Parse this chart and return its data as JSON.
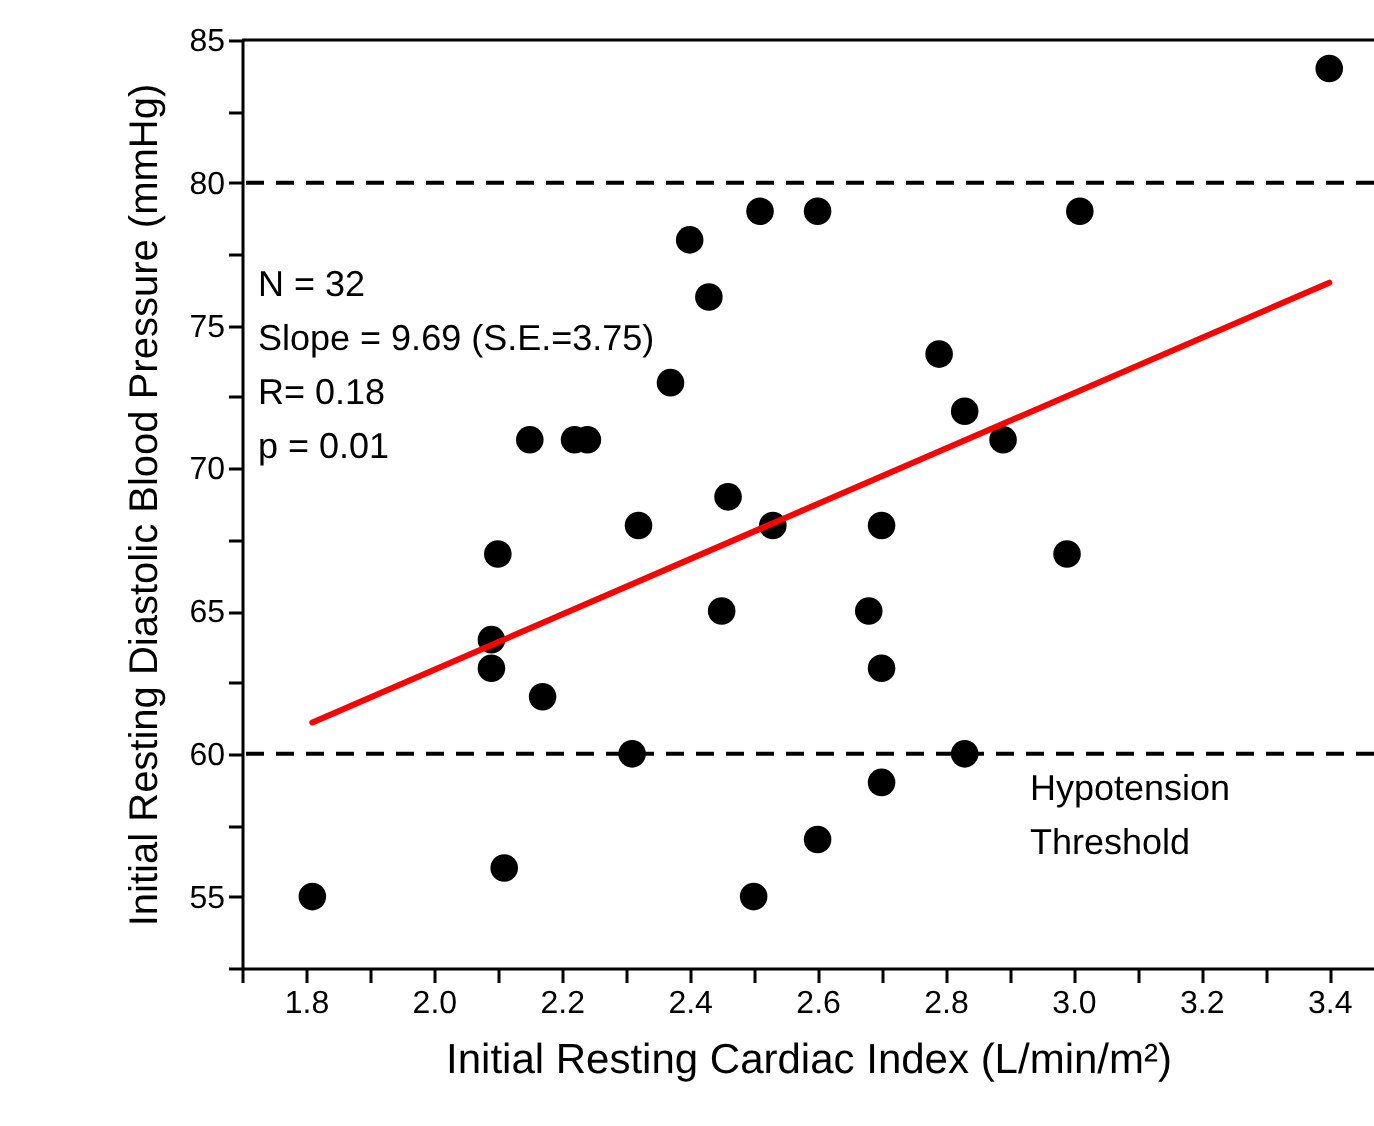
{
  "chart_data": {
    "type": "scatter",
    "xlabel": "Initial Resting Cardiac Index (L/min/m²)",
    "ylabel": "Initial Resting Diastolic Blood Pressure (mmHg)",
    "xlim": [
      1.7,
      3.47
    ],
    "ylim": [
      52.5,
      85
    ],
    "xticks": [
      {
        "value": 1.7,
        "label": null
      },
      1.8,
      {
        "value": 1.9,
        "label": null
      },
      {
        "value": 2.0,
        "label": "2.0"
      },
      {
        "value": 2.1,
        "label": null
      },
      2.2,
      {
        "value": 2.3,
        "label": null
      },
      2.4,
      {
        "value": 2.5,
        "label": null
      },
      2.6,
      {
        "value": 2.7,
        "label": null
      },
      2.8,
      {
        "value": 2.9,
        "label": null
      },
      {
        "value": 3.0,
        "label": "3.0"
      },
      {
        "value": 3.1,
        "label": null
      },
      3.2,
      {
        "value": 3.3,
        "label": null
      },
      3.4
    ],
    "yticks": [
      {
        "value": 52.5,
        "label": null
      },
      55,
      {
        "value": 57.5,
        "label": null
      },
      60,
      {
        "value": 62.5,
        "label": null
      },
      65,
      {
        "value": 67.5,
        "label": null
      },
      70,
      {
        "value": 72.5,
        "label": null
      },
      75,
      {
        "value": 77.5,
        "label": null
      },
      80,
      {
        "value": 82.5,
        "label": null
      },
      85
    ],
    "grid": false,
    "series": [
      {
        "color": "#000000",
        "marker": "circle",
        "x": [
          1.81,
          2.09,
          2.09,
          2.1,
          2.11,
          2.15,
          2.17,
          2.22,
          2.24,
          2.31,
          2.32,
          2.37,
          2.4,
          2.43,
          2.45,
          2.46,
          2.5,
          2.51,
          2.53,
          2.6,
          2.6,
          2.68,
          2.7,
          2.7,
          2.7,
          2.79,
          2.83,
          2.83,
          2.89,
          2.99,
          3.01,
          3.4
        ],
        "values": [
          55,
          64,
          63,
          67,
          56,
          71,
          62,
          71,
          71,
          60,
          68,
          73,
          78,
          76,
          65,
          69,
          55,
          79,
          68,
          79,
          57,
          65,
          68,
          63,
          59,
          74,
          72,
          60,
          71,
          67,
          79,
          84
        ]
      },
      {
        "type": "line",
        "color": "#ff0000",
        "marker": "none",
        "line_style": "solid",
        "x": [
          1.81,
          3.4
        ],
        "values": [
          61.1,
          76.5
        ]
      }
    ],
    "ref_lines": [
      {
        "axis": "y",
        "value": 80,
        "color": "#000000",
        "line_style": "dashed"
      },
      {
        "axis": "y",
        "value": 60,
        "color": "#000000",
        "line_style": "dashed"
      }
    ],
    "annotations": [
      "N = 32\nSlope = 9.69 (S.E.=3.75)\nR= 0.18\np = 0.01",
      "Hypotension\nThreshold"
    ]
  }
}
